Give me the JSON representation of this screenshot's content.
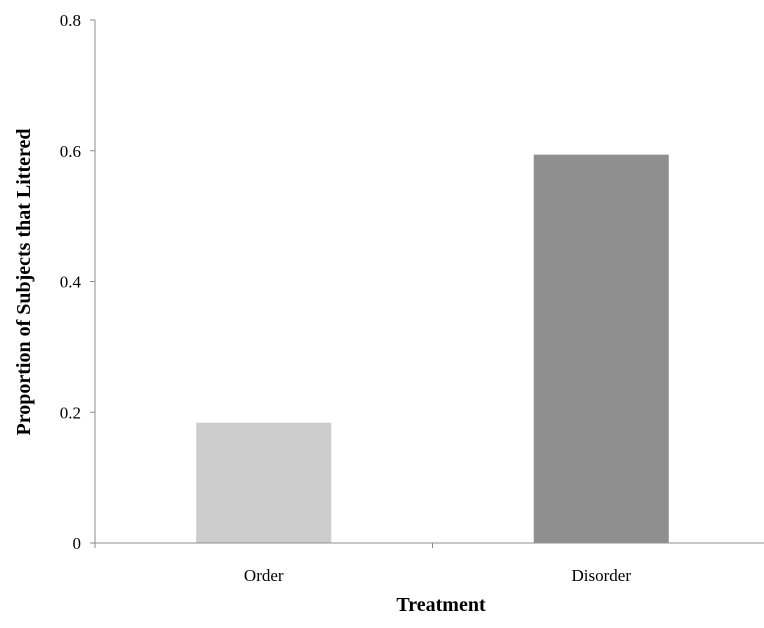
{
  "chart_data": {
    "type": "bar",
    "categories": [
      "Order",
      "Disorder"
    ],
    "values": [
      0.184,
      0.594
    ],
    "colors": [
      "#cccccc",
      "#8f8f8f"
    ],
    "title": "",
    "xlabel": "Treatment",
    "ylabel": "Proportion of Subjects that Littered",
    "ylim": [
      0,
      0.8
    ],
    "yticks": [
      0,
      0.2,
      0.4,
      0.6,
      0.8
    ],
    "ytick_labels": [
      "0",
      "0.2",
      "0.4",
      "0.6",
      "0.8"
    ],
    "grid": false,
    "legend": "none"
  }
}
